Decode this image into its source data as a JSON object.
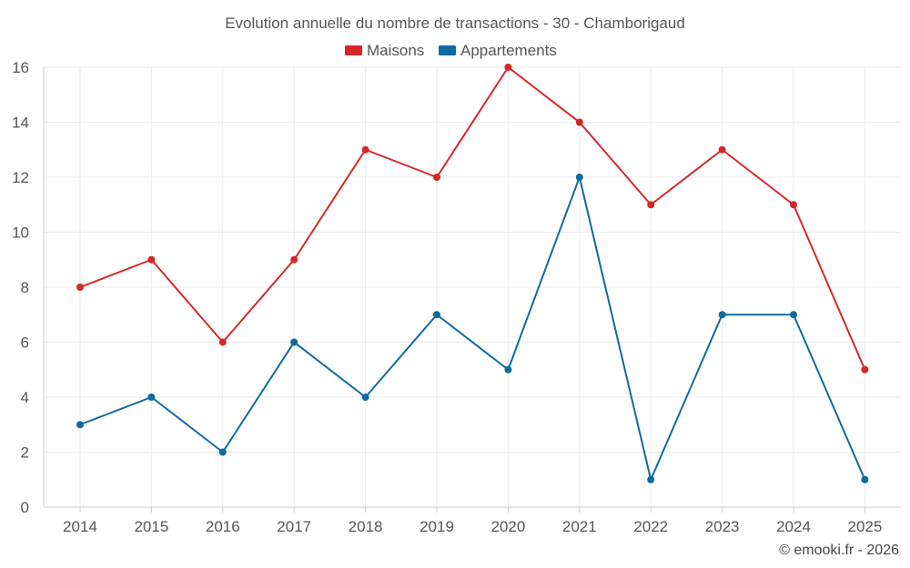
{
  "chart_data": {
    "type": "line",
    "title": "Evolution annuelle du nombre de transactions - 30 - Chamborigaud",
    "categories": [
      "2014",
      "2015",
      "2016",
      "2017",
      "2018",
      "2019",
      "2020",
      "2021",
      "2022",
      "2023",
      "2024",
      "2025"
    ],
    "series": [
      {
        "name": "Maisons",
        "color": "#d62728",
        "values": [
          8,
          9,
          6,
          9,
          13,
          12,
          16,
          14,
          11,
          13,
          11,
          5
        ]
      },
      {
        "name": "Appartements",
        "color": "#0f6aa0",
        "values": [
          3,
          4,
          2,
          6,
          4,
          7,
          5,
          12,
          1,
          7,
          7,
          1
        ]
      }
    ],
    "y_ticks": [
      0,
      2,
      4,
      6,
      8,
      10,
      12,
      14,
      16
    ],
    "ylim": [
      0,
      16
    ],
    "xlabel": "",
    "ylabel": "",
    "grid": true,
    "legend_position": "top-center"
  },
  "credit": "© emooki.fr - 2026"
}
